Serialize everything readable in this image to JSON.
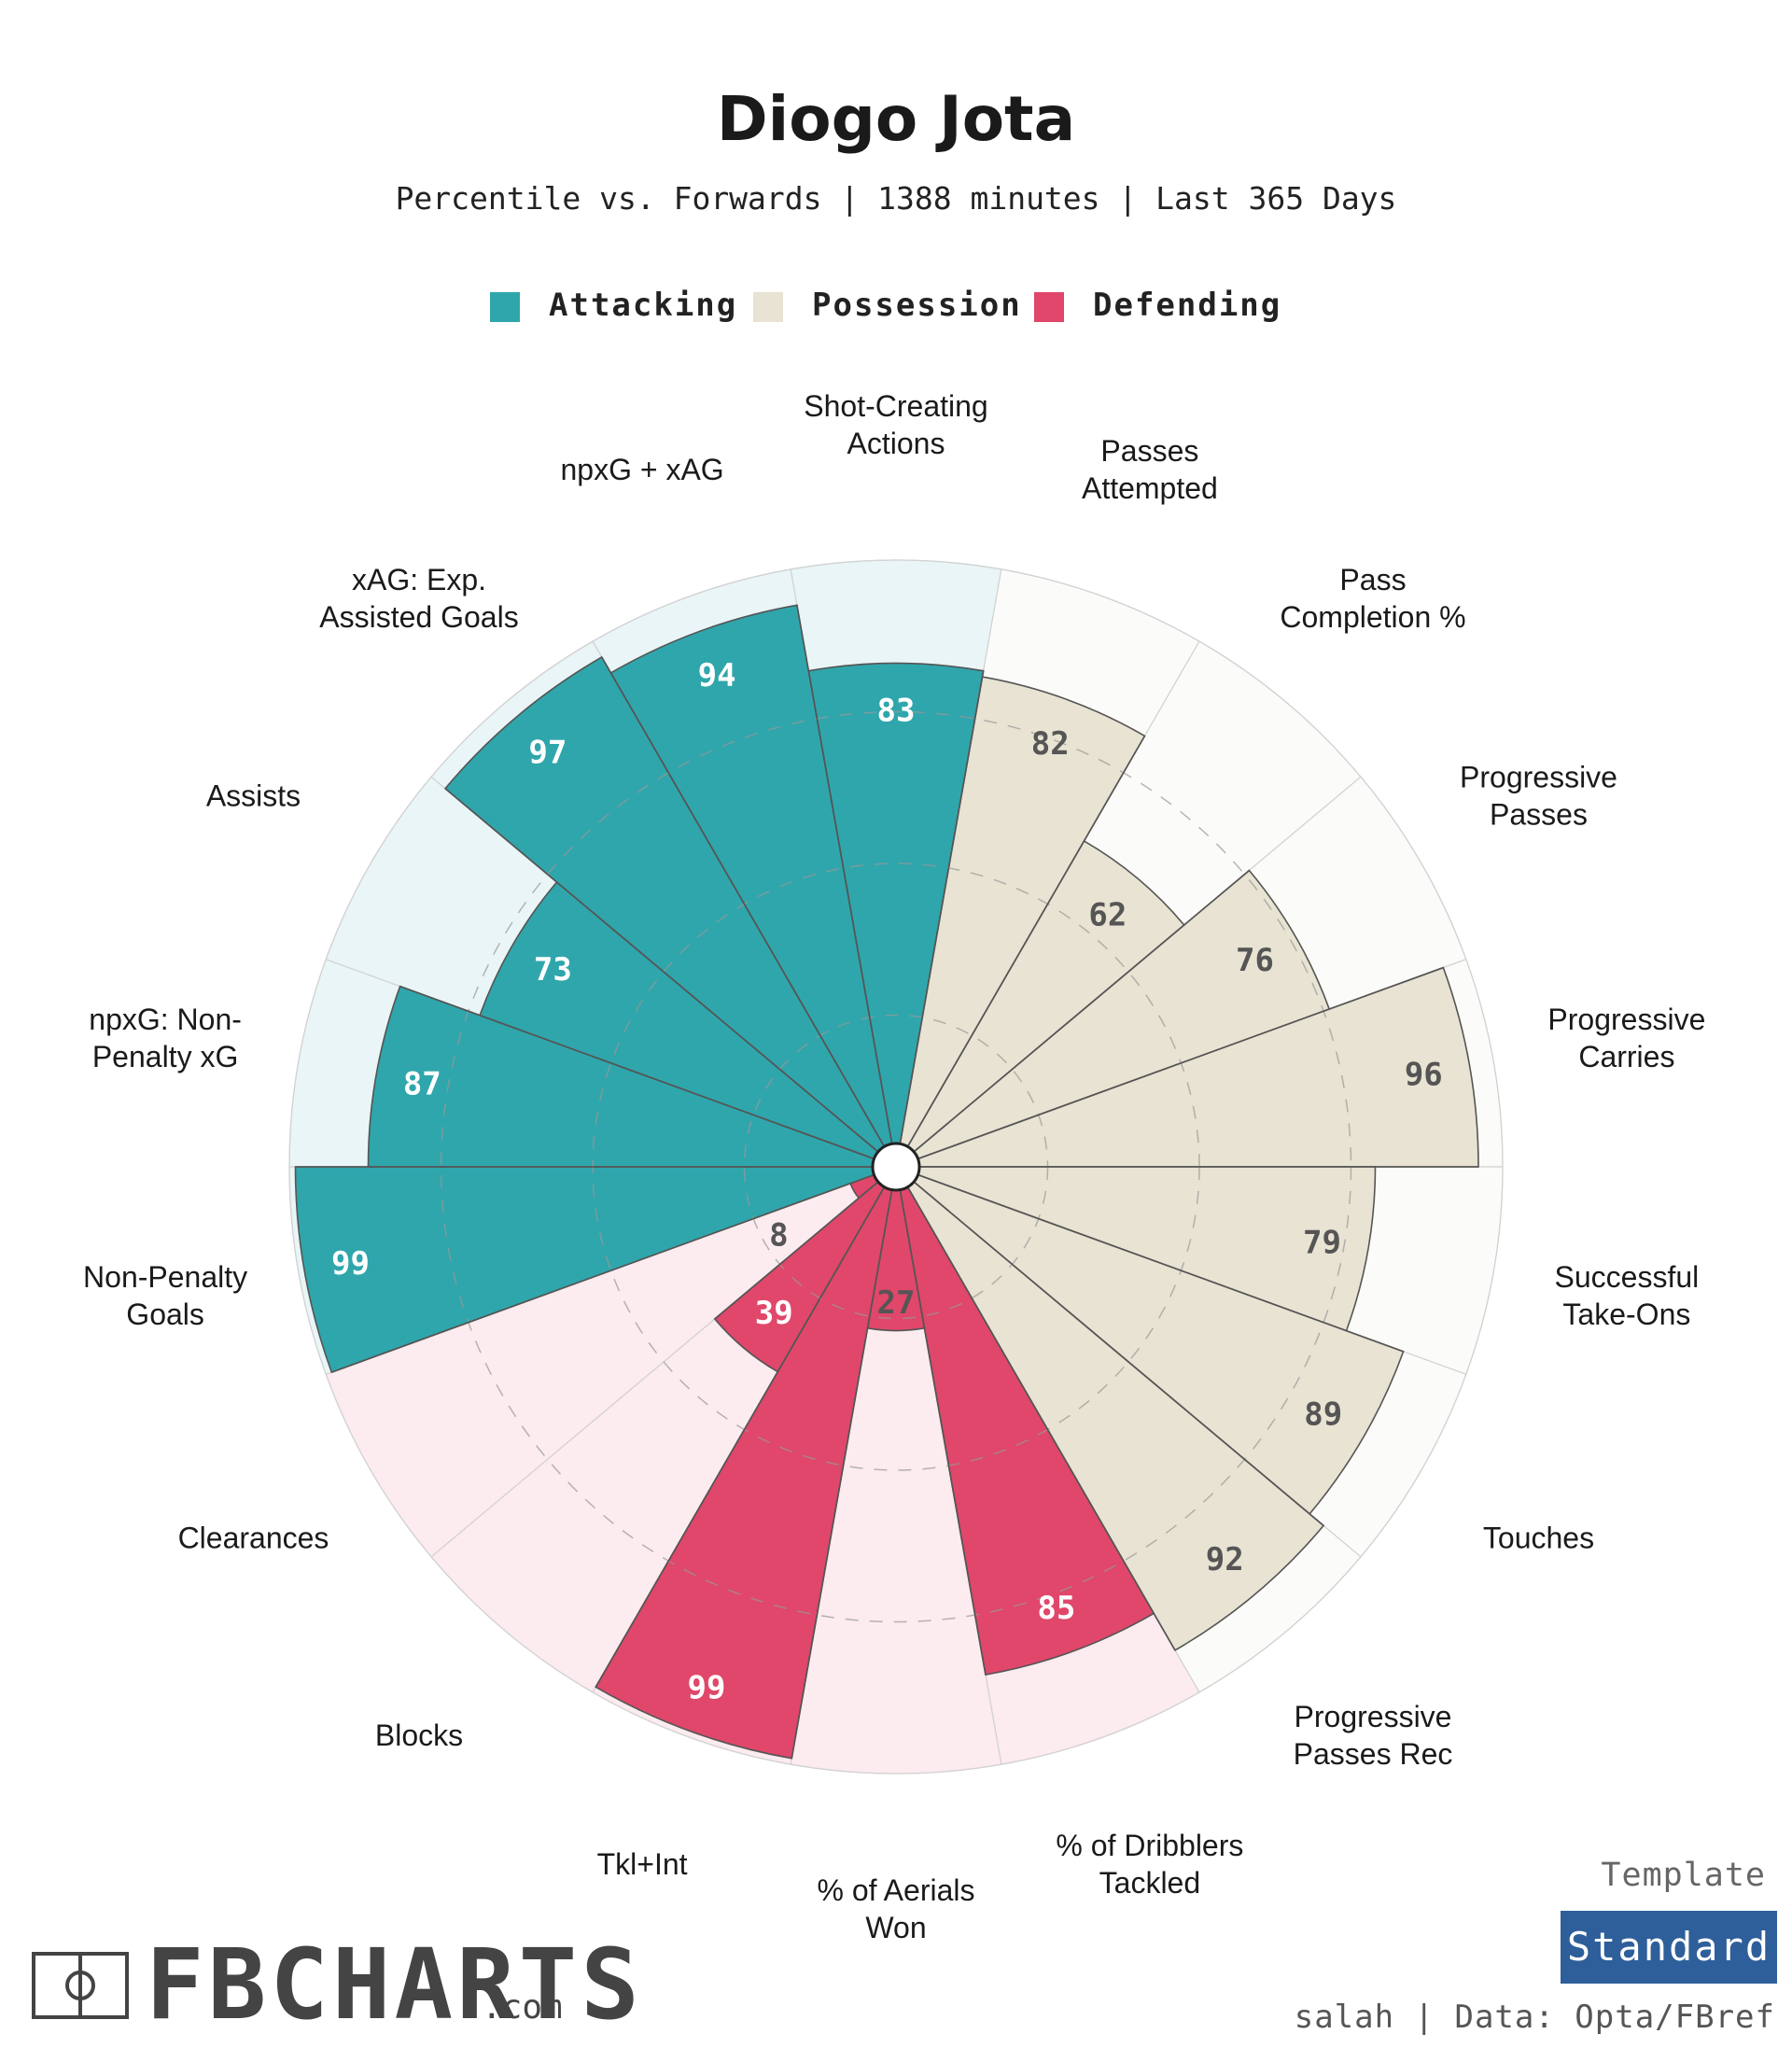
{
  "title": "Diogo Jota",
  "subtitle": "Percentile vs. Forwards | 1388 minutes | Last 365 Days",
  "legend": [
    {
      "label": "Attacking",
      "color": "#2fa6ac"
    },
    {
      "label": "Possession",
      "color": "#e8e3d2"
    },
    {
      "label": "Defending",
      "color": "#e0476a"
    }
  ],
  "chart_data": {
    "type": "polar-bar",
    "title": "Diogo Jota",
    "rmax": 100,
    "categories": [
      {
        "label": "Shot-Creating\nActions",
        "value": 83,
        "group": "Attacking"
      },
      {
        "label": "Passes\nAttempted",
        "value": 82,
        "group": "Possession"
      },
      {
        "label": "Pass\nCompletion %",
        "value": 62,
        "group": "Possession"
      },
      {
        "label": "Progressive\nPasses",
        "value": 76,
        "group": "Possession"
      },
      {
        "label": "Progressive\nCarries",
        "value": 96,
        "group": "Possession"
      },
      {
        "label": "Successful\nTake-Ons",
        "value": 79,
        "group": "Possession"
      },
      {
        "label": "Touches",
        "value": 89,
        "group": "Possession"
      },
      {
        "label": "Progressive\nPasses Rec",
        "value": 92,
        "group": "Possession"
      },
      {
        "label": "% of Dribblers\nTackled",
        "value": 85,
        "group": "Defending"
      },
      {
        "label": "% of Aerials\nWon",
        "value": 27,
        "group": "Defending"
      },
      {
        "label": "Tkl+Int",
        "value": 99,
        "group": "Defending"
      },
      {
        "label": "Blocks",
        "value": 39,
        "group": "Defending"
      },
      {
        "label": "Clearances",
        "value": 8,
        "group": "Defending"
      },
      {
        "label": "Non-Penalty\nGoals",
        "value": 99,
        "group": "Attacking"
      },
      {
        "label": "npxG: Non-\nPenalty xG",
        "value": 87,
        "group": "Attacking"
      },
      {
        "label": "Assists",
        "value": 73,
        "group": "Attacking"
      },
      {
        "label": "xAG: Exp.\nAssisted Goals",
        "value": 97,
        "group": "Attacking"
      },
      {
        "label": "npxG + xAG",
        "value": 94,
        "group": "Attacking"
      }
    ]
  },
  "branding": {
    "logo_text": "FBCHARTS",
    "logo_suffix": ".com",
    "template_label": "Template",
    "template_value": "Standard",
    "credit": "salah | Data: Opta/FBref"
  }
}
